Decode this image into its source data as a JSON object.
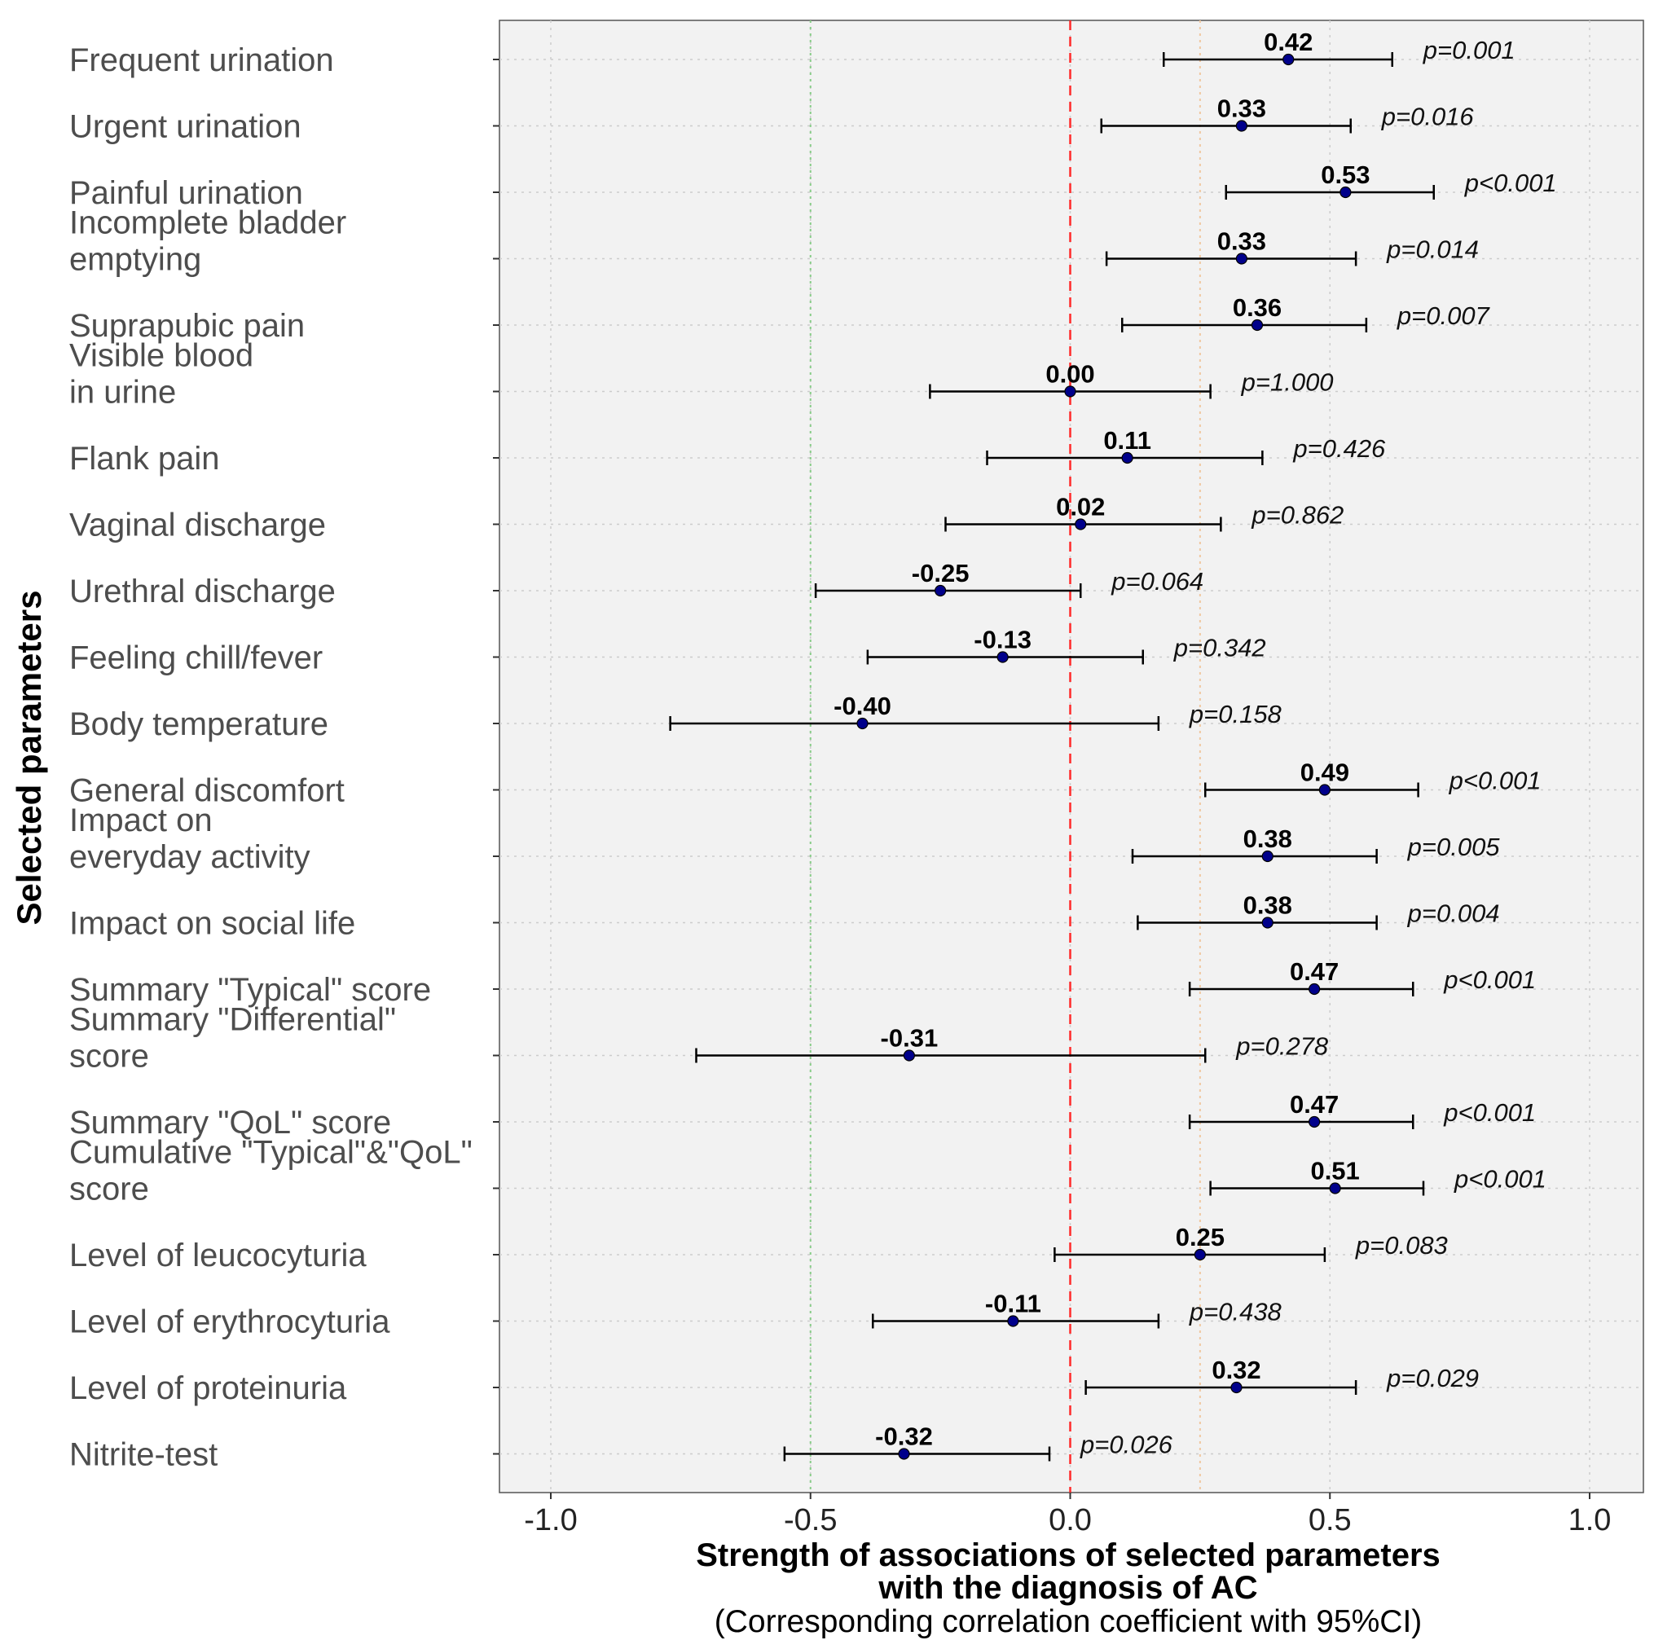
{
  "chart_data": {
    "type": "forest",
    "xlabel": [
      "Strength of associations of selected parameters",
      "with the diagnosis of AC",
      "(Corresponding correlation coefficient with 95%CI)"
    ],
    "ylabel": "Selected parameters",
    "xlim": [
      -1.1,
      1.1
    ],
    "xticks": [
      -1.0,
      -0.5,
      0.0,
      0.5,
      1.0
    ],
    "xtick_labels": [
      "-1.0",
      "-0.5",
      "0.0",
      "0.5",
      "1.0"
    ],
    "reference_lines": [
      {
        "x": 0.0,
        "style": "dashed",
        "color": "#ff2a2a"
      },
      {
        "x": -0.5,
        "style": "dotted",
        "color": "#88cc88"
      },
      {
        "x": 0.25,
        "style": "dotted",
        "color": "#f0c8a0"
      }
    ],
    "colors": {
      "point": "#00008b",
      "ci": "#000000",
      "grid": "#cccccc",
      "panel": "#f2f2f2",
      "border": "#555555"
    },
    "rows": [
      {
        "label": [
          "Frequent urination"
        ],
        "value": 0.42,
        "value_label": "0.42",
        "ci": [
          0.18,
          0.62
        ],
        "p": "p=0.001"
      },
      {
        "label": [
          "Urgent urination"
        ],
        "value": 0.33,
        "value_label": "0.33",
        "ci": [
          0.06,
          0.54
        ],
        "p": "p=0.016"
      },
      {
        "label": [
          "Painful urination"
        ],
        "value": 0.53,
        "value_label": "0.53",
        "ci": [
          0.3,
          0.7
        ],
        "p": "p<0.001"
      },
      {
        "label": [
          "Incomplete bladder",
          "emptying"
        ],
        "value": 0.33,
        "value_label": "0.33",
        "ci": [
          0.07,
          0.55
        ],
        "p": "p=0.014"
      },
      {
        "label": [
          "Suprapubic pain"
        ],
        "value": 0.36,
        "value_label": "0.36",
        "ci": [
          0.1,
          0.57
        ],
        "p": "p=0.007"
      },
      {
        "label": [
          "Visible blood",
          "in urine"
        ],
        "value": 0.0,
        "value_label": "0.00",
        "ci": [
          -0.27,
          0.27
        ],
        "p": "p=1.000"
      },
      {
        "label": [
          "Flank pain"
        ],
        "value": 0.11,
        "value_label": "0.11",
        "ci": [
          -0.16,
          0.37
        ],
        "p": "p=0.426"
      },
      {
        "label": [
          "Vaginal discharge"
        ],
        "value": 0.02,
        "value_label": "0.02",
        "ci": [
          -0.24,
          0.29
        ],
        "p": "p=0.862"
      },
      {
        "label": [
          "Urethral discharge"
        ],
        "value": -0.25,
        "value_label": "-0.25",
        "ci": [
          -0.49,
          0.02
        ],
        "p": "p=0.064"
      },
      {
        "label": [
          "Feeling chill/fever"
        ],
        "value": -0.13,
        "value_label": "-0.13",
        "ci": [
          -0.39,
          0.14
        ],
        "p": "p=0.342"
      },
      {
        "label": [
          "Body temperature"
        ],
        "value": -0.4,
        "value_label": "-0.40",
        "ci": [
          -0.77,
          0.17
        ],
        "p": "p=0.158"
      },
      {
        "label": [
          "General discomfort"
        ],
        "value": 0.49,
        "value_label": "0.49",
        "ci": [
          0.26,
          0.67
        ],
        "p": "p<0.001"
      },
      {
        "label": [
          "Impact on",
          "everyday activity"
        ],
        "value": 0.38,
        "value_label": "0.38",
        "ci": [
          0.12,
          0.59
        ],
        "p": "p=0.005"
      },
      {
        "label": [
          "Impact on social life"
        ],
        "value": 0.38,
        "value_label": "0.38",
        "ci": [
          0.13,
          0.59
        ],
        "p": "p=0.004"
      },
      {
        "label": [
          "Summary \"Typical\" score"
        ],
        "value": 0.47,
        "value_label": "0.47",
        "ci": [
          0.23,
          0.66
        ],
        "p": "p<0.001"
      },
      {
        "label": [
          "Summary \"Differential\"",
          "score"
        ],
        "value": -0.31,
        "value_label": "-0.31",
        "ci": [
          -0.72,
          0.26
        ],
        "p": "p=0.278"
      },
      {
        "label": [
          "Summary \"QoL\" score"
        ],
        "value": 0.47,
        "value_label": "0.47",
        "ci": [
          0.23,
          0.66
        ],
        "p": "p<0.001"
      },
      {
        "label": [
          "Cumulative \"Typical\"&\"QoL\"",
          "score"
        ],
        "value": 0.51,
        "value_label": "0.51",
        "ci": [
          0.27,
          0.68
        ],
        "p": "p<0.001"
      },
      {
        "label": [
          "Level of leucocyturia"
        ],
        "value": 0.25,
        "value_label": "0.25",
        "ci": [
          -0.03,
          0.49
        ],
        "p": "p=0.083"
      },
      {
        "label": [
          "Level of erythrocyturia"
        ],
        "value": -0.11,
        "value_label": "-0.11",
        "ci": [
          -0.38,
          0.17
        ],
        "p": "p=0.438"
      },
      {
        "label": [
          "Level of proteinuria"
        ],
        "value": 0.32,
        "value_label": "0.32",
        "ci": [
          0.03,
          0.55
        ],
        "p": "p=0.029"
      },
      {
        "label": [
          "Nitrite-test"
        ],
        "value": -0.32,
        "value_label": "-0.32",
        "ci": [
          -0.55,
          -0.04
        ],
        "p": "p=0.026"
      }
    ]
  }
}
